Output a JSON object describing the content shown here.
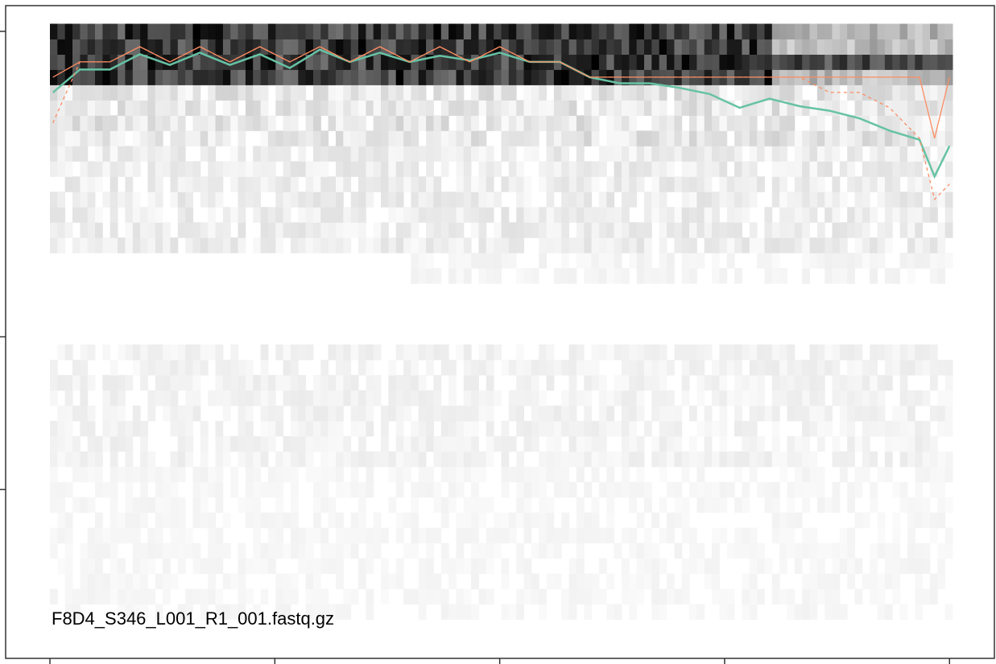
{
  "chart_data": {
    "type": "heatmap",
    "title": "",
    "xlabel": "",
    "ylabel": "",
    "panel_label": "F8D4_S346_L001_R1_001.fastq.gz",
    "x_range": [
      0,
      301
    ],
    "y_range": [
      0,
      41
    ],
    "heatmap": {
      "description_of_encoding": "grayscale tiles, darker = more reads at that quality score for the cycle",
      "color_low": "#ffffff",
      "color_high": "#000000"
    },
    "series": [
      {
        "name": "",
        "color": "#66c2a5",
        "style": "solid",
        "x": [
          1,
          10,
          20,
          30,
          40,
          50,
          60,
          70,
          80,
          90,
          100,
          110,
          120,
          130,
          140,
          150,
          160,
          170,
          180,
          190,
          200,
          210,
          220,
          230,
          240,
          250,
          260,
          270,
          280,
          290,
          295,
          300
        ],
        "y": [
          36.0,
          37.5,
          37.5,
          38.5,
          37.8,
          38.6,
          37.8,
          38.5,
          37.6,
          38.8,
          38.0,
          38.6,
          38.0,
          38.4,
          38.1,
          38.6,
          38.0,
          38.0,
          37.0,
          36.6,
          36.6,
          36.3,
          35.9,
          35.0,
          35.6,
          35.1,
          34.8,
          34.3,
          33.5,
          32.9,
          30.5,
          32.5
        ]
      },
      {
        "name": "",
        "color": "#fc8d62",
        "style": "solid",
        "x": [
          1,
          10,
          20,
          30,
          40,
          50,
          60,
          70,
          80,
          90,
          100,
          110,
          120,
          130,
          140,
          150,
          160,
          170,
          180,
          190,
          200,
          210,
          220,
          230,
          240,
          250,
          260,
          270,
          280,
          290,
          295,
          300
        ],
        "y": [
          37.0,
          38.0,
          38.0,
          39.0,
          38.0,
          39.0,
          38.0,
          39.0,
          38.0,
          39.0,
          38.0,
          39.0,
          38.0,
          39.0,
          38.0,
          39.0,
          38.0,
          38.0,
          37.0,
          37.0,
          37.0,
          37.0,
          37.0,
          37.0,
          37.0,
          37.0,
          37.0,
          37.0,
          37.0,
          37.0,
          33.0,
          37.0
        ]
      },
      {
        "name": "",
        "color": "#fc8d62",
        "style": "dashed",
        "x": [
          1,
          10,
          20,
          30,
          40,
          50,
          60,
          70,
          80,
          90,
          100,
          110,
          120,
          130,
          140,
          150,
          160,
          170,
          180,
          190,
          200,
          210,
          220,
          230,
          240,
          250,
          260,
          270,
          280,
          290,
          295,
          300
        ],
        "y": [
          34.0,
          38.0,
          38.0,
          39.0,
          38.0,
          39.0,
          38.0,
          39.0,
          38.0,
          39.0,
          38.0,
          39.0,
          38.0,
          39.0,
          38.0,
          39.0,
          38.0,
          38.0,
          37.0,
          37.0,
          37.0,
          37.0,
          37.0,
          37.0,
          37.0,
          37.0,
          36.0,
          36.0,
          35.0,
          33.0,
          29.0,
          30.0
        ]
      }
    ],
    "grid": false,
    "legend": "none"
  }
}
